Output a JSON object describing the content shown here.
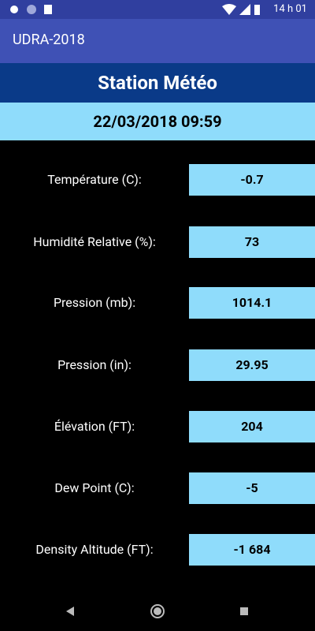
{
  "status_bar": {
    "time": "14 h 01"
  },
  "app_bar": {
    "title": "UDRA-2018"
  },
  "header": {
    "title": "Station Météo",
    "datetime": "22/03/2018 09:59"
  },
  "readings": [
    {
      "label": "Température (C):",
      "value": "-0.7"
    },
    {
      "label": "Humidité Relative (%):",
      "value": "73"
    },
    {
      "label": "Pression (mb):",
      "value": "1014.1"
    },
    {
      "label": "Pression (in):",
      "value": "29.95"
    },
    {
      "label": "Élévation (FT):",
      "value": "204"
    },
    {
      "label": "Dew Point (C):",
      "value": "-5"
    },
    {
      "label": "Density Altitude (FT):",
      "value": "-1 684"
    }
  ]
}
